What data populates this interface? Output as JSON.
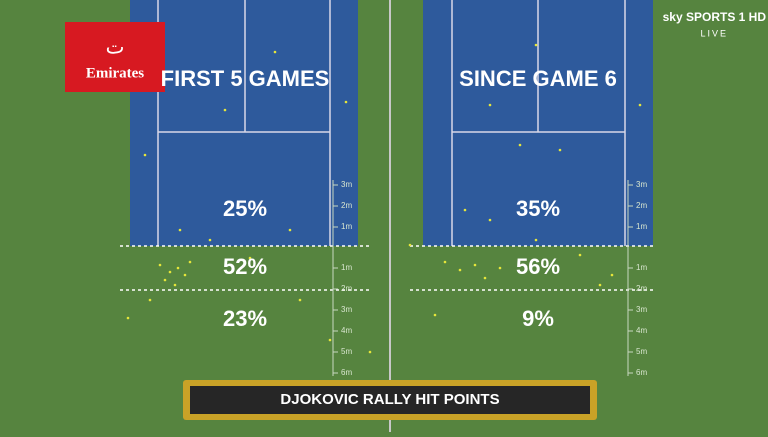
{
  "logo": {
    "brand": "Emirates"
  },
  "broadcaster": {
    "name": "sky SPORTS 1 HD",
    "status": "LIVE"
  },
  "panels": [
    {
      "title": "FIRST 5 GAMES",
      "zones": [
        "25%",
        "52%",
        "23%"
      ]
    },
    {
      "title": "SINCE GAME 6",
      "zones": [
        "35%",
        "56%",
        "9%"
      ]
    }
  ],
  "scale": {
    "inside": [
      "3m",
      "2m",
      "1m"
    ],
    "outside": [
      "1m",
      "2m",
      "3m",
      "4m",
      "5m",
      "6m"
    ]
  },
  "caption": "DJOKOVIC RALLY HIT POINTS"
}
